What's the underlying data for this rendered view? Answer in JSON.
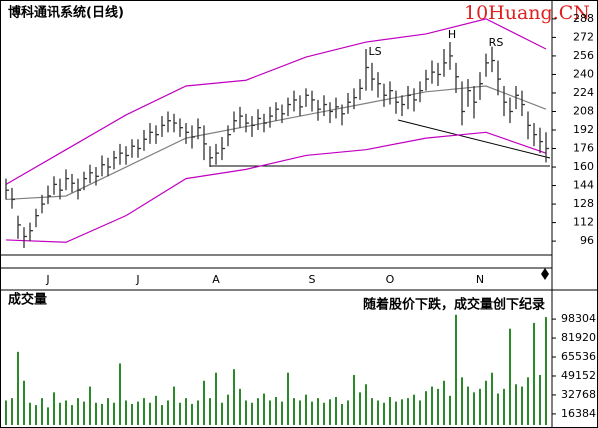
{
  "chart_data": {
    "type": "ohlc",
    "title": "博科通讯系统(日线)",
    "watermark": "10Huang.CN",
    "annotations": [
      "LS",
      "H",
      "RS"
    ],
    "categories": [
      null,
      null,
      null,
      null,
      null,
      null,
      null,
      "J",
      null,
      null,
      null,
      null,
      null,
      null,
      null,
      null,
      null,
      null,
      null,
      null,
      null,
      null,
      "J",
      null,
      null,
      null,
      null,
      null,
      null,
      null,
      null,
      null,
      null,
      null,
      null,
      "A",
      null,
      null,
      null,
      null,
      null,
      null,
      null,
      null,
      null,
      null,
      null,
      null,
      null,
      null,
      null,
      "S",
      null,
      null,
      null,
      null,
      null,
      null,
      null,
      null,
      null,
      null,
      null,
      null,
      "O",
      null,
      null,
      null,
      null,
      null,
      null,
      null,
      null,
      null,
      null,
      null,
      null,
      null,
      null,
      "N",
      null,
      null,
      null,
      null,
      null,
      null,
      null,
      null,
      null,
      null,
      null
    ],
    "high": [
      150,
      142,
      118,
      108,
      112,
      124,
      136,
      144,
      152,
      150,
      158,
      154,
      150,
      156,
      162,
      160,
      170,
      168,
      174,
      180,
      178,
      184,
      184,
      192,
      198,
      196,
      204,
      208,
      206,
      202,
      198,
      196,
      202,
      196,
      178,
      180,
      186,
      196,
      208,
      212,
      206,
      204,
      210,
      206,
      212,
      216,
      214,
      220,
      226,
      222,
      228,
      226,
      218,
      222,
      216,
      220,
      214,
      224,
      228,
      236,
      262,
      250,
      242,
      232,
      234,
      226,
      222,
      230,
      228,
      234,
      244,
      252,
      250,
      262,
      268,
      250,
      234,
      236,
      230,
      242,
      258,
      264,
      252,
      230,
      220,
      230,
      226,
      208,
      198,
      194,
      190
    ],
    "low": [
      132,
      124,
      98,
      90,
      96,
      108,
      120,
      128,
      136,
      132,
      140,
      138,
      132,
      140,
      146,
      144,
      152,
      152,
      158,
      162,
      162,
      168,
      168,
      174,
      180,
      180,
      186,
      190,
      190,
      186,
      180,
      176,
      184,
      166,
      160,
      162,
      166,
      178,
      190,
      194,
      190,
      186,
      192,
      190,
      194,
      200,
      198,
      204,
      208,
      204,
      212,
      208,
      200,
      204,
      198,
      202,
      196,
      206,
      210,
      218,
      226,
      226,
      220,
      212,
      214,
      206,
      204,
      210,
      208,
      216,
      226,
      232,
      230,
      238,
      244,
      224,
      196,
      212,
      202,
      218,
      238,
      242,
      222,
      204,
      198,
      210,
      204,
      184,
      178,
      172,
      164
    ],
    "close": [
      140,
      132,
      110,
      100,
      105,
      118,
      128,
      135,
      145,
      140,
      150,
      146,
      140,
      150,
      155,
      152,
      162,
      160,
      168,
      172,
      170,
      178,
      176,
      184,
      190,
      188,
      196,
      200,
      198,
      194,
      190,
      186,
      194,
      180,
      168,
      172,
      176,
      188,
      200,
      204,
      198,
      196,
      202,
      198,
      204,
      210,
      206,
      214,
      218,
      212,
      222,
      218,
      210,
      214,
      208,
      212,
      206,
      216,
      220,
      228,
      246,
      236,
      232,
      222,
      226,
      216,
      214,
      222,
      218,
      226,
      236,
      242,
      240,
      250,
      256,
      238,
      208,
      226,
      216,
      232,
      250,
      252,
      236,
      216,
      208,
      222,
      214,
      196,
      188,
      182,
      176
    ],
    "bar_color": "#333333",
    "bands": {
      "x": [
        0,
        10,
        20,
        30,
        40,
        50,
        60,
        70,
        80,
        90
      ],
      "series": [
        {
          "color": "#c000c0",
          "values": [
            145,
            175,
            205,
            230,
            235,
            255,
            268,
            275,
            288,
            262
          ]
        },
        {
          "color": "#808080",
          "values": [
            132,
            135,
            160,
            185,
            195,
            205,
            215,
            225,
            230,
            210
          ]
        },
        {
          "color": "#c000c0",
          "values": [
            97,
            95,
            118,
            150,
            158,
            170,
            175,
            185,
            190,
            172
          ]
        }
      ]
    },
    "ylim": [
      84,
      300
    ],
    "yticks": [
      96,
      112,
      128,
      144,
      160,
      176,
      192,
      208,
      224,
      240,
      256,
      272,
      288
    ],
    "volume": {
      "title": "成交量",
      "annotation": "随着股价下跌，成交量创下纪录",
      "color": "#2a8a2a",
      "values": [
        28000,
        30000,
        70000,
        45000,
        26000,
        24000,
        30000,
        22000,
        35000,
        26000,
        28000,
        24000,
        30000,
        27000,
        40000,
        26000,
        25000,
        30000,
        26000,
        60000,
        28000,
        25000,
        27000,
        30000,
        26000,
        32000,
        24000,
        28000,
        40000,
        26000,
        30000,
        25000,
        28000,
        45000,
        30000,
        52000,
        26000,
        33000,
        55000,
        38000,
        28000,
        26000,
        30000,
        34000,
        28000,
        31000,
        27000,
        52000,
        30000,
        28000,
        33000,
        27000,
        30000,
        26000,
        29000,
        31000,
        25000,
        28000,
        50000,
        35000,
        42000,
        30000,
        28000,
        26000,
        31000,
        27000,
        29000,
        30000,
        33000,
        28000,
        36000,
        40000,
        38000,
        45000,
        32000,
        102000,
        48000,
        40000,
        35000,
        38000,
        45000,
        52000,
        34000,
        38000,
        90000,
        42000,
        40000,
        48000,
        95000,
        50000,
        100000
      ],
      "ylim": [
        6800,
        114800
      ],
      "yticks": [
        16384,
        32768,
        49152,
        65536,
        81920,
        98304
      ]
    }
  }
}
